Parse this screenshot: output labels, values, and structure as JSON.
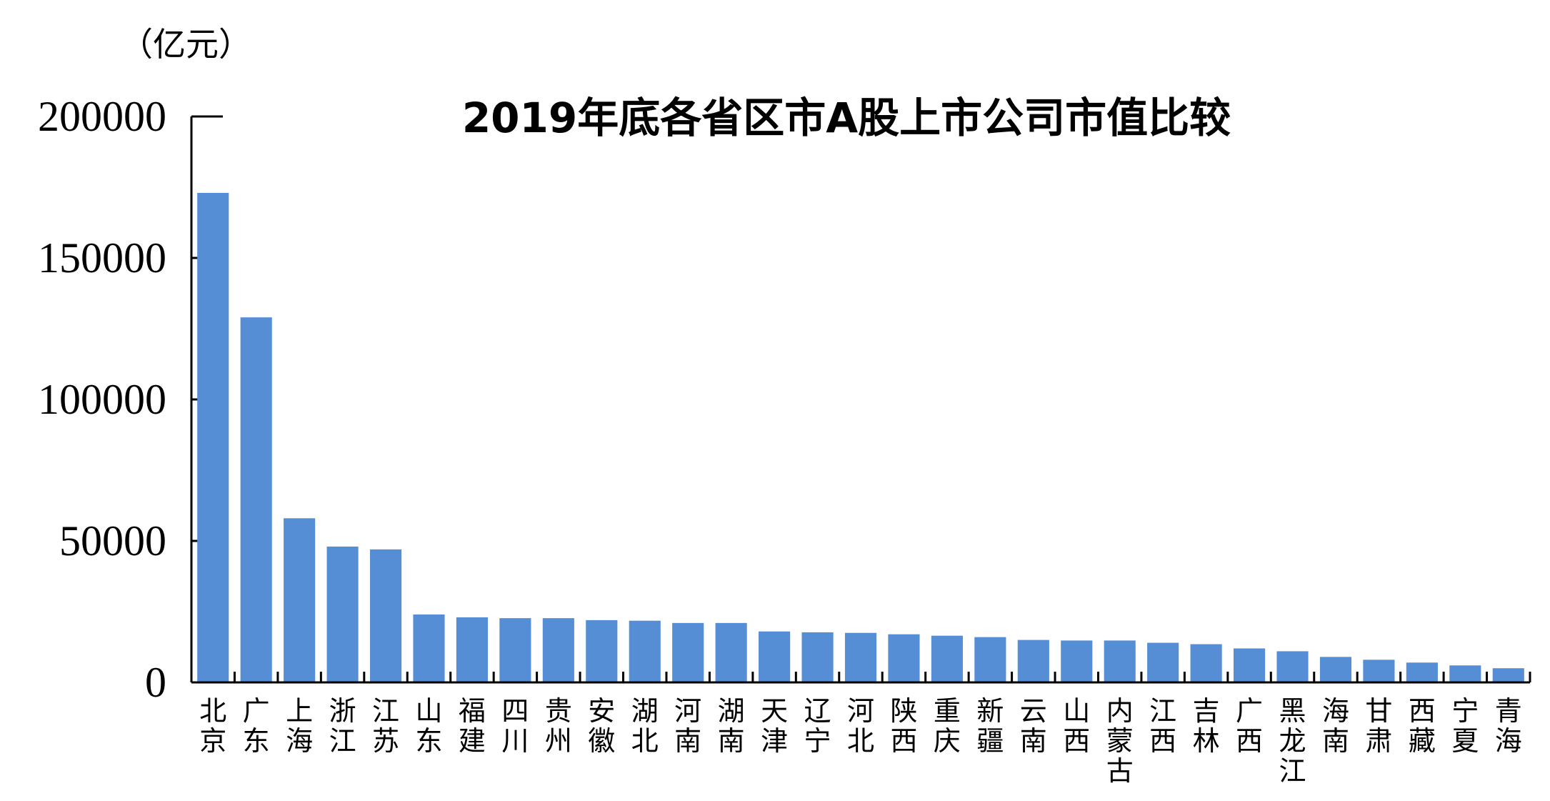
{
  "chart_data": {
    "type": "bar",
    "title": "2019年底各省区市A股上市公司市值比较",
    "unit": "（亿元）",
    "ylim": [
      0,
      200000
    ],
    "yticks": [
      0,
      50000,
      100000,
      150000,
      200000
    ],
    "grid": false,
    "bar_color": "#558ed5",
    "categories": [
      "北京",
      "广东",
      "上海",
      "浙江",
      "江苏",
      "山东",
      "福建",
      "四川",
      "贵州",
      "安徽",
      "湖北",
      "河南",
      "湖南",
      "天津",
      "辽宁",
      "河北",
      "陕西",
      "重庆",
      "新疆",
      "云南",
      "山西",
      "内蒙古",
      "江西",
      "吉林",
      "广西",
      "黑龙江",
      "海南",
      "甘肃",
      "西藏",
      "宁夏",
      "青海"
    ],
    "values": [
      173000,
      129000,
      58000,
      48000,
      47000,
      24000,
      23000,
      22700,
      22700,
      22000,
      21800,
      21000,
      21000,
      18000,
      17700,
      17500,
      17000,
      16500,
      16000,
      15000,
      14800,
      14800,
      14000,
      13500,
      12000,
      11000,
      9000,
      8000,
      7000,
      6000,
      5000
    ]
  }
}
